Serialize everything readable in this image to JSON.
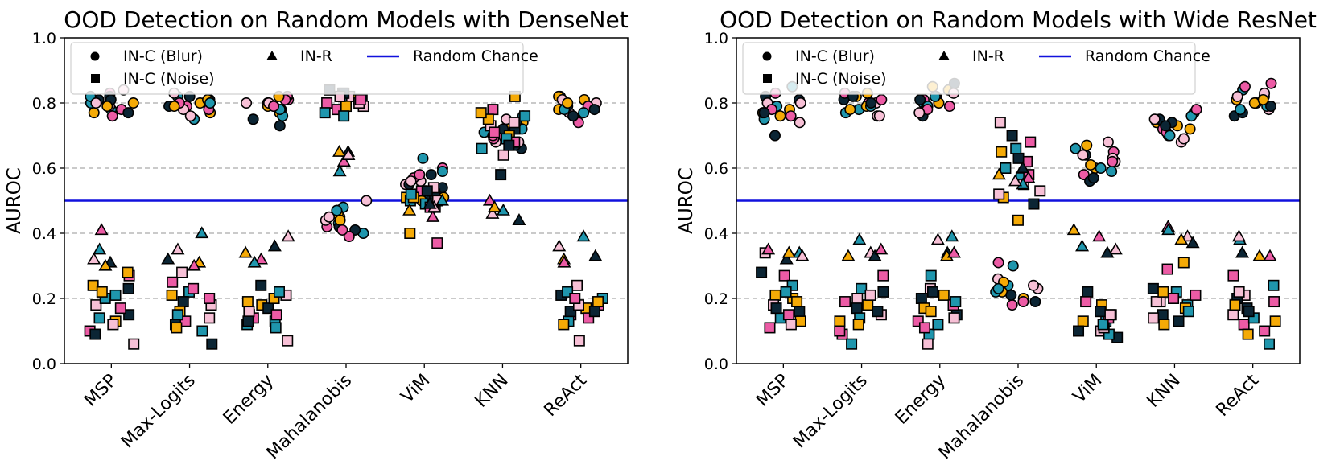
{
  "colors": {
    "palette": [
      "#0b2534",
      "#f5aa06",
      "#ec5ba5",
      "#1f96ad",
      "#f7c0d6"
    ],
    "random_line": "#1111dd",
    "grid": "#aaaaaa"
  },
  "chart_data": [
    {
      "type": "scatter",
      "title": "OOD Detection on Random Models with DenseNet",
      "xlabel": "",
      "ylabel": "AUROC",
      "ylim": [
        0.0,
        1.0
      ],
      "yticks": [
        "0.0",
        "0.2",
        "0.4",
        "0.6",
        "0.8",
        "1.0"
      ],
      "grid": "y-dashed",
      "legend_position": "top-left",
      "legend": [
        "IN-C (Blur)",
        "IN-R",
        "Random Chance",
        "IN-C (Noise)"
      ],
      "random_chance": 0.5,
      "categories": [
        "MSP",
        "Max-Logits",
        "Energy",
        "Mahalanobis",
        "ViM",
        "KNN",
        "ReAct"
      ],
      "series": [
        {
          "name": "IN-C (Blur)",
          "marker": "circle",
          "values": [
            [
              0.81,
              0.8,
              0.83,
              0.78,
              0.79,
              0.82,
              0.77,
              0.76,
              0.8,
              0.84,
              0.81,
              0.79,
              0.78,
              0.82,
              0.8,
              0.77
            ],
            [
              0.8,
              0.79,
              0.82,
              0.78,
              0.81,
              0.77,
              0.8,
              0.75,
              0.83,
              0.79,
              0.81,
              0.78,
              0.8,
              0.76,
              0.82,
              0.79
            ],
            [
              0.81,
              0.79,
              0.8,
              0.78,
              0.77,
              0.82,
              0.76,
              0.8,
              0.73,
              0.79,
              0.81,
              0.78,
              0.8,
              0.75,
              0.82,
              0.79
            ],
            [
              0.4,
              0.5,
              0.47,
              0.45,
              0.42,
              0.48,
              0.44,
              0.41,
              0.46,
              0.39,
              0.43,
              0.45,
              0.42,
              0.44,
              0.41,
              0.47
            ],
            [
              0.55,
              0.58,
              0.52,
              0.6,
              0.63,
              0.56,
              0.54,
              0.51,
              0.57,
              0.59,
              0.53,
              0.55,
              0.5,
              0.58,
              0.52,
              0.56
            ],
            [
              0.66,
              0.73,
              0.7,
              0.76,
              0.68,
              0.72,
              0.74,
              0.69,
              0.71,
              0.75,
              0.67,
              0.73,
              0.7,
              0.72,
              0.68,
              0.74
            ],
            [
              0.78,
              0.8,
              0.82,
              0.77,
              0.79,
              0.81,
              0.74,
              0.78,
              0.8,
              0.76,
              0.82,
              0.79,
              0.77,
              0.81,
              0.78,
              0.8
            ]
          ]
        },
        {
          "name": "IN-C (Noise)",
          "marker": "square",
          "values": [
            [
              0.24,
              0.27,
              0.21,
              0.18,
              0.15,
              0.13,
              0.1,
              0.14,
              0.06,
              0.23,
              0.28,
              0.17,
              0.2,
              0.12,
              0.09,
              0.22
            ],
            [
              0.25,
              0.22,
              0.28,
              0.19,
              0.16,
              0.13,
              0.1,
              0.14,
              0.06,
              0.21,
              0.23,
              0.15,
              0.18,
              0.12,
              0.11,
              0.2
            ],
            [
              0.13,
              0.21,
              0.24,
              0.18,
              0.15,
              0.12,
              0.07,
              0.17,
              0.2,
              0.14,
              0.22,
              0.16,
              0.13,
              0.19,
              0.15,
              0.11
            ],
            [
              0.82,
              0.81,
              0.83,
              0.8,
              0.77,
              0.79,
              0.84,
              0.81,
              0.78,
              0.82,
              0.8,
              0.83,
              0.79,
              0.81,
              0.76,
              0.82
            ],
            [
              0.5,
              0.51,
              0.53,
              0.49,
              0.48,
              0.52,
              0.4,
              0.37,
              0.5,
              0.54,
              0.49,
              0.51,
              0.48,
              0.52,
              0.5,
              0.53
            ],
            [
              0.82,
              0.78,
              0.76,
              0.73,
              0.72,
              0.7,
              0.68,
              0.66,
              0.64,
              0.58,
              0.75,
              0.71,
              0.69,
              0.74,
              0.67,
              0.77
            ],
            [
              0.18,
              0.2,
              0.24,
              0.21,
              0.17,
              0.15,
              0.13,
              0.07,
              0.16,
              0.19,
              0.14,
              0.22,
              0.18,
              0.16,
              0.12,
              0.2
            ]
          ]
        },
        {
          "name": "IN-R",
          "marker": "triangle",
          "values": [
            [
              0.41,
              0.35,
              0.32,
              0.31,
              0.3
            ],
            [
              0.4,
              0.35,
              0.32,
              0.31,
              0.3
            ],
            [
              0.39,
              0.36,
              0.34,
              0.32,
              0.31
            ],
            [
              0.65,
              0.65,
              0.62,
              0.59,
              0.64
            ],
            [
              0.47,
              0.45,
              0.5,
              0.48,
              0.49
            ],
            [
              0.5,
              0.47,
              0.46,
              0.44,
              0.48
            ],
            [
              0.39,
              0.36,
              0.33,
              0.32,
              0.31
            ]
          ]
        }
      ]
    },
    {
      "type": "scatter",
      "title": "OOD Detection on Random Models with Wide ResNet",
      "xlabel": "",
      "ylabel": "AUROC",
      "ylim": [
        0.0,
        1.0
      ],
      "yticks": [
        "0.0",
        "0.2",
        "0.4",
        "0.6",
        "0.8",
        "1.0"
      ],
      "grid": "y-dashed",
      "legend_position": "top-left",
      "legend": [
        "IN-C (Blur)",
        "IN-R",
        "Random Chance",
        "IN-C (Noise)"
      ],
      "random_chance": 0.5,
      "categories": [
        "MSP",
        "Max-Logits",
        "Energy",
        "Mahalanobis",
        "ViM",
        "KNN",
        "ReAct"
      ],
      "series": [
        {
          "name": "IN-C (Blur)",
          "marker": "circle",
          "values": [
            [
              0.82,
              0.78,
              0.76,
              0.75,
              0.8,
              0.7,
              0.77,
              0.83,
              0.79,
              0.74,
              0.81,
              0.76,
              0.78,
              0.85,
              0.8,
              0.77
            ],
            [
              0.82,
              0.8,
              0.78,
              0.76,
              0.81,
              0.79,
              0.83,
              0.77,
              0.8,
              0.82,
              0.78,
              0.81,
              0.79,
              0.76,
              0.8,
              0.83
            ],
            [
              0.82,
              0.8,
              0.78,
              0.76,
              0.84,
              0.81,
              0.79,
              0.83,
              0.86,
              0.8,
              0.78,
              0.82,
              0.77,
              0.81,
              0.85,
              0.79
            ],
            [
              0.24,
              0.23,
              0.25,
              0.22,
              0.31,
              0.3,
              0.26,
              0.19,
              0.2,
              0.18,
              0.22,
              0.24,
              0.21,
              0.25,
              0.19,
              0.23
            ],
            [
              0.62,
              0.64,
              0.6,
              0.58,
              0.66,
              0.68,
              0.56,
              0.61,
              0.65,
              0.59,
              0.63,
              0.57,
              0.67,
              0.62,
              0.6,
              0.64
            ],
            [
              0.77,
              0.74,
              0.72,
              0.7,
              0.68,
              0.75,
              0.73,
              0.71,
              0.76,
              0.69,
              0.74,
              0.72,
              0.78,
              0.7,
              0.75,
              0.73
            ],
            [
              0.8,
              0.82,
              0.84,
              0.78,
              0.76,
              0.81,
              0.86,
              0.79,
              0.83,
              0.77,
              0.8,
              0.85,
              0.78,
              0.82,
              0.79,
              0.81
            ]
          ]
        },
        {
          "name": "IN-C (Noise)",
          "marker": "square",
          "values": [
            [
              0.21,
              0.27,
              0.24,
              0.18,
              0.16,
              0.13,
              0.11,
              0.14,
              0.34,
              0.28,
              0.2,
              0.15,
              0.22,
              0.12,
              0.17,
              0.19
            ],
            [
              0.27,
              0.23,
              0.2,
              0.17,
              0.13,
              0.09,
              0.06,
              0.15,
              0.22,
              0.18,
              0.1,
              0.14,
              0.21,
              0.16,
              0.12,
              0.19
            ],
            [
              0.27,
              0.23,
              0.2,
              0.17,
              0.13,
              0.09,
              0.06,
              0.15,
              0.21,
              0.18,
              0.12,
              0.14,
              0.22,
              0.16,
              0.11,
              0.19
            ],
            [
              0.74,
              0.7,
              0.65,
              0.62,
              0.57,
              0.53,
              0.49,
              0.44,
              0.68,
              0.6,
              0.55,
              0.63,
              0.51,
              0.58,
              0.66,
              0.52
            ],
            [
              0.22,
              0.18,
              0.15,
              0.13,
              0.1,
              0.08,
              0.12,
              0.14,
              0.09,
              0.11,
              0.16,
              0.13,
              0.19,
              0.12,
              0.15,
              0.1
            ],
            [
              0.31,
              0.29,
              0.22,
              0.19,
              0.15,
              0.12,
              0.2,
              0.18,
              0.14,
              0.23,
              0.17,
              0.21,
              0.16,
              0.19,
              0.13,
              0.22
            ],
            [
              0.27,
              0.24,
              0.21,
              0.17,
              0.13,
              0.1,
              0.06,
              0.15,
              0.2,
              0.18,
              0.12,
              0.14,
              0.22,
              0.16,
              0.09,
              0.19
            ]
          ]
        },
        {
          "name": "IN-R",
          "marker": "triangle",
          "values": [
            [
              0.35,
              0.34,
              0.33,
              0.32,
              0.34
            ],
            [
              0.38,
              0.34,
              0.33,
              0.33,
              0.35
            ],
            [
              0.38,
              0.34,
              0.33,
              0.34,
              0.39
            ],
            [
              0.6,
              0.58,
              0.57,
              0.55,
              0.56
            ],
            [
              0.41,
              0.39,
              0.36,
              0.35,
              0.34
            ],
            [
              0.42,
              0.41,
              0.39,
              0.37,
              0.38
            ],
            [
              0.38,
              0.39,
              0.34,
              0.33,
              0.33
            ]
          ]
        }
      ]
    }
  ]
}
